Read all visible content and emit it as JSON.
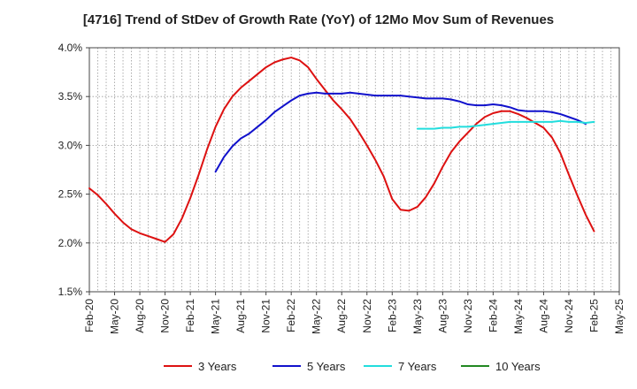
{
  "chart_data": {
    "type": "line",
    "title": "[4716]  Trend of StDev of Growth Rate (YoY) of 12Mo Mov Sum of Revenues",
    "xlabel": "",
    "ylabel": "",
    "ylim": [
      1.5,
      4.0
    ],
    "yticks": [
      1.5,
      2.0,
      2.5,
      3.0,
      3.5,
      4.0
    ],
    "ytick_labels": [
      "1.5%",
      "2.0%",
      "2.5%",
      "3.0%",
      "3.5%",
      "4.0%"
    ],
    "x_start": "Feb-20",
    "x_month_count": 64,
    "xtick_labels": [
      "Feb-20",
      "May-20",
      "Aug-20",
      "Nov-20",
      "Feb-21",
      "May-21",
      "Aug-21",
      "Nov-21",
      "Feb-22",
      "May-22",
      "Aug-22",
      "Nov-22",
      "Feb-23",
      "May-23",
      "Aug-23",
      "Nov-23",
      "Feb-24",
      "May-24",
      "Aug-24",
      "Nov-24",
      "Feb-25",
      "May-25"
    ],
    "grid": true,
    "legend_position": "bottom",
    "series": [
      {
        "name": "3 Years",
        "color": "#dd1111",
        "start_index": 0,
        "values": [
          2.56,
          2.49,
          2.4,
          2.3,
          2.21,
          2.14,
          2.1,
          2.07,
          2.04,
          2.01,
          2.09,
          2.25,
          2.46,
          2.7,
          2.96,
          3.19,
          3.37,
          3.5,
          3.59,
          3.66,
          3.73,
          3.8,
          3.85,
          3.88,
          3.9,
          3.87,
          3.8,
          3.68,
          3.57,
          3.46,
          3.37,
          3.27,
          3.14,
          3.0,
          2.85,
          2.68,
          2.45,
          2.34,
          2.33,
          2.37,
          2.47,
          2.61,
          2.78,
          2.93,
          3.04,
          3.13,
          3.22,
          3.29,
          3.33,
          3.35,
          3.35,
          3.32,
          3.28,
          3.23,
          3.18,
          3.08,
          2.92,
          2.7,
          2.49,
          2.29,
          2.12
        ]
      },
      {
        "name": "5 Years",
        "color": "#1111cc",
        "start_index": 15,
        "values": [
          2.73,
          2.88,
          2.99,
          3.07,
          3.12,
          3.19,
          3.26,
          3.34,
          3.4,
          3.46,
          3.51,
          3.53,
          3.54,
          3.53,
          3.53,
          3.53,
          3.54,
          3.53,
          3.52,
          3.51,
          3.51,
          3.51,
          3.51,
          3.5,
          3.49,
          3.48,
          3.48,
          3.48,
          3.47,
          3.45,
          3.42,
          3.41,
          3.41,
          3.42,
          3.41,
          3.39,
          3.36,
          3.35,
          3.35,
          3.35,
          3.34,
          3.32,
          3.29,
          3.26,
          3.22
        ]
      },
      {
        "name": "7 Years",
        "color": "#22dddd",
        "start_index": 39,
        "values": [
          3.17,
          3.17,
          3.17,
          3.18,
          3.18,
          3.19,
          3.19,
          3.2,
          3.21,
          3.22,
          3.23,
          3.24,
          3.24,
          3.24,
          3.24,
          3.24,
          3.24,
          3.25,
          3.24,
          3.24,
          3.23,
          3.24
        ]
      },
      {
        "name": "10 Years",
        "color": "#228822",
        "start_index": 0,
        "values": []
      }
    ]
  }
}
